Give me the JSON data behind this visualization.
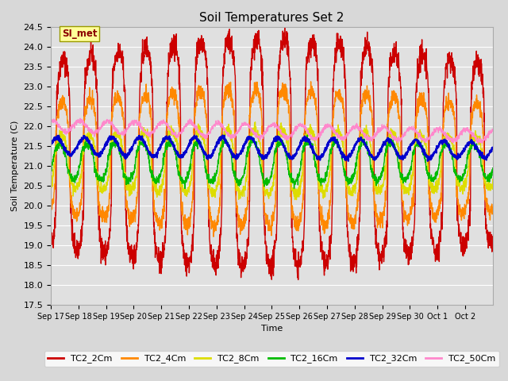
{
  "title": "Soil Temperatures Set 2",
  "ylabel": "Soil Temperature (C)",
  "xlabel": "Time",
  "ylim": [
    17.5,
    24.5
  ],
  "bg_color": "#d8d8d8",
  "plot_bg_color": "#e0e0e0",
  "series_order": [
    "TC2_2Cm",
    "TC2_4Cm",
    "TC2_8Cm",
    "TC2_16Cm",
    "TC2_32Cm",
    "TC2_50Cm"
  ],
  "series": {
    "TC2_2Cm": {
      "color": "#cc0000",
      "lw": 1.0,
      "amplitude": 2.5,
      "mean": 21.3,
      "phase": 0.0,
      "noise": 0.15,
      "sharpness": 4.0
    },
    "TC2_4Cm": {
      "color": "#ff8800",
      "lw": 1.0,
      "amplitude": 1.5,
      "mean": 21.2,
      "phase": 0.2,
      "noise": 0.1,
      "sharpness": 3.0
    },
    "TC2_8Cm": {
      "color": "#dddd00",
      "lw": 1.0,
      "amplitude": 0.7,
      "mean": 21.1,
      "phase": 0.45,
      "noise": 0.07,
      "sharpness": 2.0
    },
    "TC2_16Cm": {
      "color": "#00bb00",
      "lw": 1.0,
      "amplitude": 0.45,
      "mean": 21.1,
      "phase": 0.85,
      "noise": 0.05,
      "sharpness": 1.5
    },
    "TC2_32Cm": {
      "color": "#0000cc",
      "lw": 1.5,
      "amplitude": 0.22,
      "mean": 21.4,
      "phase": 1.5,
      "noise": 0.03,
      "sharpness": 1.0
    },
    "TC2_50Cm": {
      "color": "#ff88cc",
      "lw": 1.0,
      "amplitude": 0.15,
      "mean": 21.75,
      "phase": 2.5,
      "noise": 0.03,
      "sharpness": 1.0
    }
  },
  "x_ticks": [
    "Sep 17",
    "Sep 18",
    "Sep 19",
    "Sep 20",
    "Sep 21",
    "Sep 22",
    "Sep 23",
    "Sep 24",
    "Sep 25",
    "Sep 26",
    "Sep 27",
    "Sep 28",
    "Sep 29",
    "Sep 30",
    "Oct 1",
    "Oct 2"
  ],
  "n_days": 16,
  "samples_per_day": 144,
  "annotation_text": "SI_met",
  "annotation_color": "#8b0000",
  "annotation_bg": "#ffff99",
  "annotation_border": "#999900"
}
